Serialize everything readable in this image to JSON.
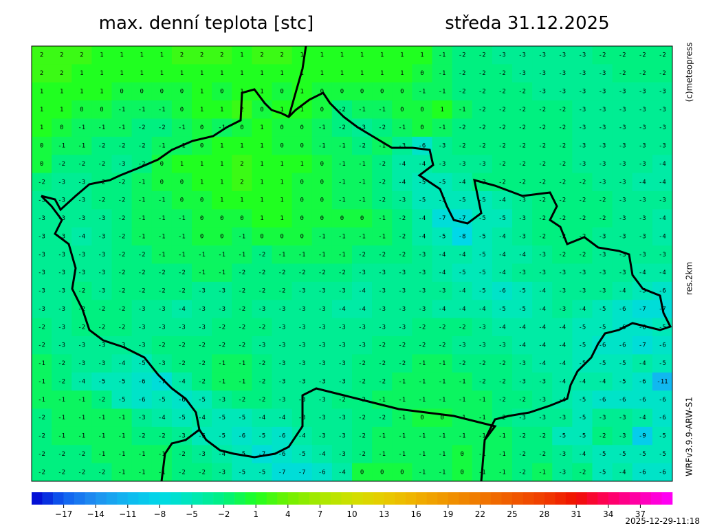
{
  "header": {
    "title": "max. denní teplota [stc]",
    "date": "středa 31.12.2025"
  },
  "side": {
    "credit": "(c)meteopress",
    "resolution": "res.2km",
    "model": "WRFv3.9.9-ARW-S1"
  },
  "timestamp": "2025-12-29-11:18",
  "colorbar": {
    "lim": [
      -20,
      40
    ],
    "colors": [
      "#0000d0",
      "#1060f0",
      "#2090f0",
      "#10b8f0",
      "#00d8e8",
      "#00e8b8",
      "#00f080",
      "#20ff20",
      "#70f000",
      "#a8e800",
      "#d0e000",
      "#e8cc00",
      "#f0b000",
      "#f09400",
      "#f07800",
      "#f05a00",
      "#f03c00",
      "#f01000",
      "#ff0060",
      "#ff00b0",
      "#ff00ff"
    ],
    "ticks": [
      {
        "value": -17,
        "label": "−17"
      },
      {
        "value": -14,
        "label": "−14"
      },
      {
        "value": -11,
        "label": "−11"
      },
      {
        "value": -8,
        "label": "−8"
      },
      {
        "value": -5,
        "label": "−5"
      },
      {
        "value": -2,
        "label": "−2"
      },
      1,
      4,
      7,
      10,
      13,
      16,
      19,
      22,
      25,
      28,
      31,
      34,
      37
    ]
  },
  "field": {
    "values": [
      [
        2,
        2,
        2,
        1,
        1,
        1,
        1,
        2,
        2,
        2,
        1,
        2,
        2,
        1,
        1,
        1,
        1,
        1,
        1,
        1,
        -1,
        -2,
        -2,
        -3,
        -3,
        -3,
        -3,
        -3,
        -2,
        -2,
        -2,
        -2
      ],
      [
        2,
        2,
        1,
        1,
        1,
        1,
        1,
        1,
        1,
        1,
        1,
        1,
        1,
        1,
        1,
        1,
        1,
        1,
        1,
        0,
        -1,
        -2,
        -2,
        -2,
        -3,
        -3,
        -3,
        -3,
        -3,
        -2,
        -2,
        -2
      ],
      [
        1,
        1,
        1,
        1,
        0,
        0,
        0,
        0,
        1,
        0,
        1,
        1,
        0,
        1,
        0,
        0,
        0,
        0,
        0,
        -1,
        -1,
        -2,
        -2,
        -2,
        -2,
        -3,
        -3,
        -3,
        -3,
        -3,
        -3,
        -3
      ],
      [
        1,
        1,
        0,
        0,
        -1,
        -1,
        -1,
        0,
        1,
        1,
        2,
        0,
        1,
        1,
        0,
        -2,
        -1,
        -1,
        0,
        0,
        1,
        -1,
        -2,
        -2,
        -2,
        -2,
        -2,
        -3,
        -3,
        -3,
        -3,
        -3
      ],
      [
        1,
        0,
        -1,
        -1,
        -1,
        -2,
        -2,
        -1,
        0,
        -1,
        0,
        1,
        0,
        0,
        -1,
        -2,
        -3,
        -2,
        -1,
        0,
        -1,
        -2,
        -2,
        -2,
        -2,
        -2,
        -2,
        -3,
        -3,
        -3,
        -3,
        -3
      ],
      [
        0,
        -1,
        -1,
        -2,
        -2,
        -2,
        -1,
        -1,
        0,
        1,
        1,
        1,
        0,
        0,
        -1,
        -1,
        -2,
        -1,
        -3,
        -6,
        -3,
        -2,
        -2,
        -2,
        -2,
        -2,
        -2,
        -3,
        -3,
        -3,
        -3,
        -3
      ],
      [
        0,
        -2,
        -2,
        -2,
        -3,
        -2,
        0,
        1,
        1,
        1,
        2,
        1,
        1,
        1,
        0,
        -1,
        -1,
        -2,
        -4,
        -4,
        -3,
        -3,
        -3,
        -2,
        -2,
        -2,
        -2,
        -3,
        -3,
        -3,
        -3,
        -4
      ],
      [
        -2,
        -3,
        -3,
        -2,
        -2,
        -1,
        0,
        0,
        1,
        1,
        2,
        1,
        1,
        0,
        0,
        -1,
        -1,
        -2,
        -4,
        -5,
        -5,
        -4,
        -2,
        -2,
        -2,
        -2,
        -2,
        -2,
        -3,
        -3,
        -4,
        -4
      ],
      [
        -3,
        -3,
        -3,
        -2,
        -2,
        -1,
        -1,
        0,
        0,
        1,
        1,
        1,
        1,
        0,
        0,
        -1,
        -1,
        -2,
        -3,
        -5,
        -5,
        -5,
        -5,
        -4,
        -3,
        -2,
        -2,
        -2,
        -2,
        -3,
        -3,
        -3
      ],
      [
        -3,
        -3,
        -3,
        -3,
        -2,
        -1,
        -1,
        -1,
        0,
        0,
        0,
        1,
        1,
        0,
        0,
        0,
        0,
        -1,
        -2,
        -4,
        -7,
        -7,
        -5,
        -5,
        -3,
        -2,
        -2,
        -2,
        -2,
        -3,
        -3,
        -4
      ],
      [
        -3,
        -3,
        -4,
        -3,
        -2,
        -1,
        -1,
        -1,
        0,
        0,
        -1,
        0,
        0,
        0,
        -1,
        -1,
        -1,
        -1,
        -2,
        -4,
        -5,
        -8,
        -5,
        -4,
        -3,
        -2,
        -2,
        -2,
        -3,
        -3,
        -3,
        -4
      ],
      [
        -3,
        -3,
        -3,
        -3,
        -2,
        -2,
        -1,
        -1,
        -1,
        -1,
        -1,
        -2,
        -1,
        -1,
        -1,
        -1,
        -2,
        -2,
        -2,
        -3,
        -4,
        -4,
        -5,
        -4,
        -4,
        -3,
        -2,
        -2,
        -3,
        -3,
        -3,
        -3
      ],
      [
        -3,
        -3,
        -3,
        -3,
        -2,
        -2,
        -2,
        -2,
        -1,
        -1,
        -2,
        -2,
        -2,
        -2,
        -2,
        -2,
        -3,
        -3,
        -3,
        -3,
        -4,
        -5,
        -5,
        -4,
        -3,
        -3,
        -3,
        -3,
        -3,
        -3,
        -4,
        -4
      ],
      [
        -3,
        -3,
        -2,
        -3,
        -2,
        -2,
        -2,
        -2,
        -3,
        -3,
        -2,
        -2,
        -2,
        -3,
        -3,
        -3,
        -4,
        -3,
        -3,
        -3,
        -3,
        -4,
        -5,
        -6,
        -5,
        -4,
        -3,
        -3,
        -3,
        -4,
        -5,
        -6
      ],
      [
        -3,
        -3,
        -2,
        -2,
        -2,
        -3,
        -3,
        -4,
        -3,
        -3,
        -2,
        -3,
        -3,
        -3,
        -3,
        -4,
        -4,
        -3,
        -3,
        -3,
        -4,
        -4,
        -4,
        -5,
        -5,
        -4,
        -3,
        -4,
        -5,
        -6,
        -7,
        -7
      ],
      [
        -2,
        -3,
        -2,
        -2,
        -2,
        -3,
        -3,
        -3,
        -3,
        -2,
        -2,
        -2,
        -3,
        -3,
        -3,
        -3,
        -3,
        -3,
        -3,
        -2,
        -2,
        -2,
        -3,
        -4,
        -4,
        -4,
        -4,
        -5,
        -5,
        -6,
        -6,
        -5
      ],
      [
        -2,
        -3,
        -3,
        -3,
        -3,
        -3,
        -2,
        -2,
        -2,
        -2,
        -2,
        -3,
        -3,
        -3,
        -3,
        -3,
        -3,
        -2,
        -2,
        -2,
        -2,
        -3,
        -3,
        -3,
        -4,
        -4,
        -4,
        -5,
        -6,
        -6,
        -7,
        -6
      ],
      [
        -1,
        -2,
        -3,
        -3,
        -4,
        -5,
        -3,
        -2,
        -2,
        -1,
        -1,
        -2,
        -3,
        -3,
        -3,
        -3,
        -2,
        -2,
        -2,
        -1,
        -1,
        -2,
        -2,
        -2,
        -3,
        -4,
        -4,
        -5,
        -5,
        -5,
        -4,
        -5
      ],
      [
        -1,
        -2,
        -4,
        -5,
        -5,
        -6,
        -7,
        -4,
        -2,
        -1,
        -1,
        -2,
        -3,
        -3,
        -3,
        -3,
        -2,
        -2,
        -1,
        -1,
        -1,
        -1,
        -2,
        -2,
        -3,
        -3,
        -4,
        -4,
        -4,
        -5,
        -6,
        -11
      ],
      [
        -1,
        -1,
        -1,
        -2,
        -5,
        -6,
        -5,
        -6,
        -5,
        -3,
        -2,
        -2,
        -3,
        -3,
        -3,
        -2,
        -2,
        -1,
        -1,
        -1,
        -1,
        -1,
        -1,
        -2,
        -2,
        -3,
        -4,
        -5,
        -6,
        -6,
        -6,
        -6
      ],
      [
        -2,
        -1,
        -1,
        -1,
        -1,
        -3,
        -4,
        -5,
        -4,
        -5,
        -5,
        -4,
        -4,
        -3,
        -3,
        -3,
        -2,
        -2,
        -1,
        0,
        0,
        -1,
        -1,
        -2,
        -3,
        -3,
        -3,
        -5,
        -3,
        -3,
        -4,
        -6
      ],
      [
        -2,
        -1,
        -1,
        -1,
        -1,
        -2,
        -2,
        -3,
        -5,
        -5,
        -6,
        -5,
        -6,
        -4,
        -3,
        -3,
        -2,
        -1,
        -1,
        -1,
        -1,
        -1,
        -1,
        -1,
        -2,
        -2,
        -5,
        -5,
        -2,
        -3,
        -9,
        -5
      ],
      [
        -2,
        -2,
        -2,
        -1,
        -1,
        -1,
        -1,
        -2,
        -3,
        -4,
        -5,
        -7,
        -6,
        -5,
        -4,
        -3,
        -2,
        -1,
        -1,
        -1,
        -1,
        0,
        -1,
        -1,
        -2,
        -2,
        -3,
        -4,
        -5,
        -5,
        -5,
        -5
      ],
      [
        -2,
        -2,
        -2,
        -2,
        -1,
        -1,
        -1,
        -2,
        -2,
        -3,
        -5,
        -5,
        -7,
        -7,
        -6,
        -4,
        0,
        0,
        0,
        -1,
        -1,
        0,
        -1,
        -1,
        -2,
        -1,
        -3,
        -2,
        -5,
        -4,
        -6,
        -6
      ]
    ]
  }
}
